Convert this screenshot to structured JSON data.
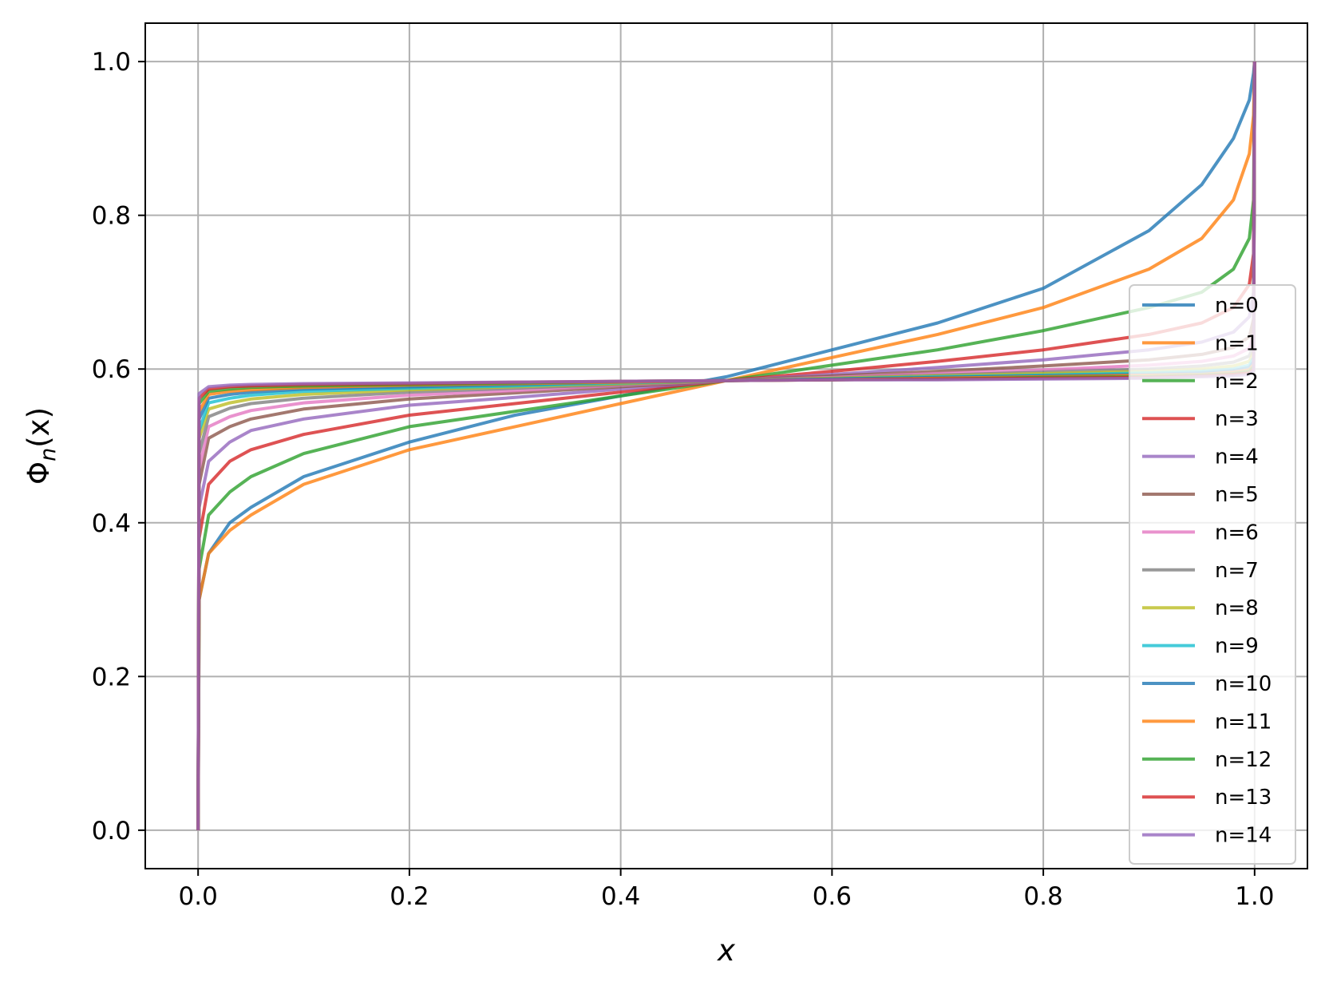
{
  "chart_data": {
    "type": "line",
    "title": "",
    "xlabel": "x",
    "ylabel_main": "Φ",
    "ylabel_sub": "n",
    "ylabel_tail": "(x)",
    "xlim": [
      -0.05,
      1.05
    ],
    "ylim": [
      -0.05,
      1.05
    ],
    "grid": true,
    "legend_position": "center-right",
    "x_ticks": [
      0.0,
      0.2,
      0.4,
      0.6,
      0.8,
      1.0
    ],
    "y_ticks": [
      0.0,
      0.2,
      0.4,
      0.6,
      0.8,
      1.0
    ],
    "x_tick_labels": [
      "0.0",
      "0.2",
      "0.4",
      "0.6",
      "0.8",
      "1.0"
    ],
    "y_tick_labels": [
      "0.0",
      "0.2",
      "0.4",
      "0.6",
      "0.8",
      "1.0"
    ],
    "x": [
      0.0,
      0.001,
      0.01,
      0.03,
      0.05,
      0.1,
      0.2,
      0.3,
      0.4,
      0.5,
      0.6,
      0.7,
      0.8,
      0.9,
      0.95,
      0.98,
      0.995,
      0.999,
      1.0
    ],
    "series": [
      {
        "name": "n=0",
        "color": "#1f77b4",
        "values": [
          0.0,
          0.3,
          0.36,
          0.4,
          0.42,
          0.46,
          0.505,
          0.54,
          0.565,
          0.59,
          0.625,
          0.66,
          0.705,
          0.78,
          0.84,
          0.9,
          0.95,
          0.985,
          1.0
        ]
      },
      {
        "name": "n=1",
        "color": "#ff7f0e",
        "values": [
          0.0,
          0.3,
          0.36,
          0.39,
          0.41,
          0.45,
          0.495,
          0.525,
          0.555,
          0.585,
          0.615,
          0.645,
          0.68,
          0.73,
          0.77,
          0.82,
          0.88,
          0.93,
          1.0
        ]
      },
      {
        "name": "n=2",
        "color": "#2ca02c",
        "values": [
          0.0,
          0.34,
          0.41,
          0.44,
          0.46,
          0.49,
          0.525,
          0.545,
          0.565,
          0.585,
          0.605,
          0.625,
          0.65,
          0.68,
          0.7,
          0.73,
          0.77,
          0.82,
          1.0
        ]
      },
      {
        "name": "n=3",
        "color": "#d62728",
        "values": [
          0.0,
          0.38,
          0.45,
          0.48,
          0.495,
          0.515,
          0.54,
          0.555,
          0.57,
          0.585,
          0.597,
          0.61,
          0.625,
          0.645,
          0.66,
          0.68,
          0.71,
          0.75,
          1.0
        ]
      },
      {
        "name": "n=4",
        "color": "#9467bd",
        "values": [
          0.0,
          0.42,
          0.48,
          0.505,
          0.52,
          0.535,
          0.553,
          0.563,
          0.574,
          0.585,
          0.593,
          0.602,
          0.612,
          0.625,
          0.635,
          0.648,
          0.668,
          0.7,
          1.0
        ]
      },
      {
        "name": "n=5",
        "color": "#8c564b",
        "values": [
          0.0,
          0.45,
          0.51,
          0.525,
          0.535,
          0.548,
          0.561,
          0.569,
          0.577,
          0.585,
          0.591,
          0.597,
          0.604,
          0.612,
          0.619,
          0.628,
          0.642,
          0.665,
          1.0
        ]
      },
      {
        "name": "n=6",
        "color": "#e377c2",
        "values": [
          0.0,
          0.47,
          0.525,
          0.538,
          0.546,
          0.556,
          0.566,
          0.572,
          0.579,
          0.585,
          0.589,
          0.594,
          0.599,
          0.605,
          0.61,
          0.617,
          0.627,
          0.645,
          1.0
        ]
      },
      {
        "name": "n=7",
        "color": "#7f7f7f",
        "values": [
          0.0,
          0.49,
          0.538,
          0.549,
          0.555,
          0.562,
          0.57,
          0.575,
          0.58,
          0.585,
          0.588,
          0.592,
          0.596,
          0.6,
          0.604,
          0.609,
          0.617,
          0.632,
          1.0
        ]
      },
      {
        "name": "n=8",
        "color": "#bcbd22",
        "values": [
          0.0,
          0.51,
          0.548,
          0.556,
          0.561,
          0.567,
          0.573,
          0.577,
          0.581,
          0.585,
          0.588,
          0.591,
          0.594,
          0.597,
          0.6,
          0.604,
          0.61,
          0.622,
          1.0
        ]
      },
      {
        "name": "n=9",
        "color": "#17becf",
        "values": [
          0.0,
          0.52,
          0.556,
          0.562,
          0.566,
          0.571,
          0.575,
          0.578,
          0.582,
          0.585,
          0.587,
          0.59,
          0.592,
          0.595,
          0.597,
          0.6,
          0.605,
          0.615,
          1.0
        ]
      },
      {
        "name": "n=10",
        "color": "#1f77b4",
        "values": [
          0.0,
          0.535,
          0.562,
          0.567,
          0.57,
          0.574,
          0.577,
          0.58,
          0.583,
          0.585,
          0.587,
          0.589,
          0.591,
          0.593,
          0.595,
          0.598,
          0.602,
          0.61,
          1.0
        ]
      },
      {
        "name": "n=11",
        "color": "#ff7f0e",
        "values": [
          0.0,
          0.545,
          0.567,
          0.571,
          0.573,
          0.576,
          0.579,
          0.581,
          0.583,
          0.585,
          0.586,
          0.588,
          0.59,
          0.592,
          0.593,
          0.596,
          0.599,
          0.606,
          1.0
        ]
      },
      {
        "name": "n=12",
        "color": "#2ca02c",
        "values": [
          0.0,
          0.555,
          0.571,
          0.574,
          0.576,
          0.578,
          0.58,
          0.582,
          0.584,
          0.585,
          0.586,
          0.587,
          0.589,
          0.59,
          0.592,
          0.594,
          0.597,
          0.603,
          1.0
        ]
      },
      {
        "name": "n=13",
        "color": "#d62728",
        "values": [
          0.0,
          0.562,
          0.574,
          0.577,
          0.578,
          0.58,
          0.581,
          0.583,
          0.584,
          0.585,
          0.586,
          0.587,
          0.588,
          0.589,
          0.591,
          0.593,
          0.595,
          0.6,
          1.0
        ]
      },
      {
        "name": "n=14",
        "color": "#9467bd",
        "values": [
          0.0,
          0.568,
          0.577,
          0.579,
          0.58,
          0.581,
          0.582,
          0.583,
          0.584,
          0.585,
          0.586,
          0.586,
          0.587,
          0.588,
          0.59,
          0.591,
          0.593,
          0.598,
          1.0
        ]
      }
    ]
  }
}
